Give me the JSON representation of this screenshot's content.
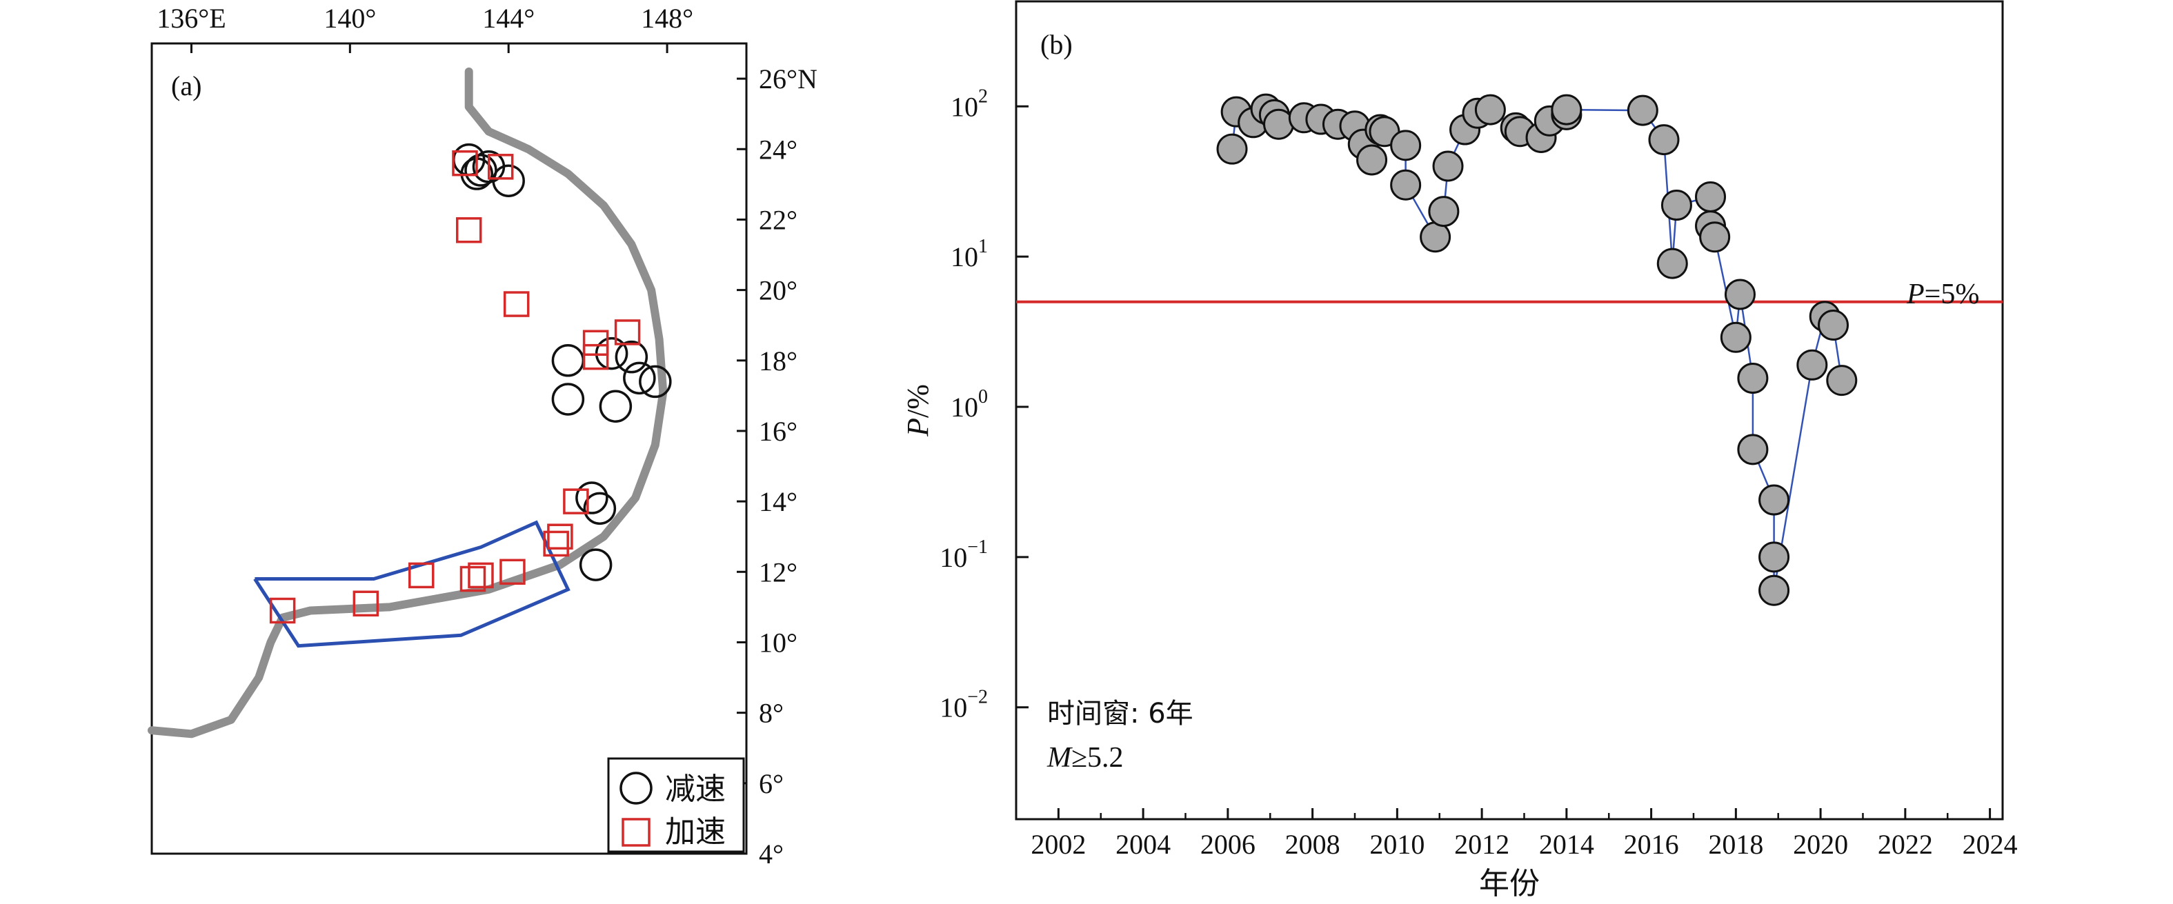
{
  "panel_a": {
    "label": "(a)",
    "x_ticks": [
      {
        "lon": 136,
        "label": "136°E"
      },
      {
        "lon": 140,
        "label": "140°"
      },
      {
        "lon": 144,
        "label": "144°"
      },
      {
        "lon": 148,
        "label": "148°"
      }
    ],
    "y_ticks": [
      {
        "lat": 26,
        "label": "26°N"
      },
      {
        "lat": 24,
        "label": "24°"
      },
      {
        "lat": 22,
        "label": "22°"
      },
      {
        "lat": 20,
        "label": "20°"
      },
      {
        "lat": 18,
        "label": "18°"
      },
      {
        "lat": 16,
        "label": "16°"
      },
      {
        "lat": 14,
        "label": "14°"
      },
      {
        "lat": 12,
        "label": "12°"
      },
      {
        "lat": 10,
        "label": "10°"
      },
      {
        "lat": 8,
        "label": "8°"
      },
      {
        "lat": 6,
        "label": "6°"
      },
      {
        "lat": 4,
        "label": "4°"
      }
    ],
    "legend": {
      "decel": "减速",
      "accel": "加速"
    },
    "colors": {
      "decel": "#111111",
      "accel": "#d42a2a",
      "trench": "#8f8f8f",
      "region": "#2b4fb0"
    }
  },
  "panel_b": {
    "label": "(b)",
    "xlabel": "年份",
    "ylabel_italic": "P",
    "ylabel_rest": "/%",
    "threshold_label_italic": "P",
    "threshold_label_rest": "=5%",
    "annotation_line1": "时间窗: 6年",
    "annotation_line2_italic": "M",
    "annotation_line2_rest": "≥5.2",
    "colors": {
      "threshold": "#d42a2a",
      "marker_fill": "#a7a7a7",
      "connector": "#3352b5"
    }
  },
  "chart_data": [
    {
      "type": "scatter",
      "panel": "a",
      "xlim": [
        135,
        150
      ],
      "ylim": [
        4,
        27
      ],
      "series": [
        {
          "name": "减速",
          "marker": "circle",
          "points": [
            {
              "lon": 143.0,
              "lat": 23.7
            },
            {
              "lon": 143.3,
              "lat": 23.4
            },
            {
              "lon": 143.5,
              "lat": 23.5
            },
            {
              "lon": 143.2,
              "lat": 23.3
            },
            {
              "lon": 144.0,
              "lat": 23.1
            },
            {
              "lon": 145.5,
              "lat": 18.0
            },
            {
              "lon": 146.6,
              "lat": 18.2
            },
            {
              "lon": 147.1,
              "lat": 18.1
            },
            {
              "lon": 147.3,
              "lat": 17.5
            },
            {
              "lon": 147.7,
              "lat": 17.4
            },
            {
              "lon": 145.5,
              "lat": 16.9
            },
            {
              "lon": 146.7,
              "lat": 16.7
            },
            {
              "lon": 146.1,
              "lat": 14.1
            },
            {
              "lon": 146.3,
              "lat": 13.8
            },
            {
              "lon": 146.2,
              "lat": 12.2
            }
          ]
        },
        {
          "name": "加速",
          "marker": "square",
          "points": [
            {
              "lon": 142.9,
              "lat": 23.6
            },
            {
              "lon": 143.8,
              "lat": 23.5
            },
            {
              "lon": 143.0,
              "lat": 21.7
            },
            {
              "lon": 144.2,
              "lat": 19.6
            },
            {
              "lon": 146.2,
              "lat": 18.5
            },
            {
              "lon": 146.2,
              "lat": 18.1
            },
            {
              "lon": 147.0,
              "lat": 18.8
            },
            {
              "lon": 145.7,
              "lat": 14.0
            },
            {
              "lon": 145.3,
              "lat": 13.0
            },
            {
              "lon": 145.2,
              "lat": 12.8
            },
            {
              "lon": 141.8,
              "lat": 11.9
            },
            {
              "lon": 143.1,
              "lat": 11.8
            },
            {
              "lon": 143.3,
              "lat": 11.9
            },
            {
              "lon": 144.1,
              "lat": 12.0
            },
            {
              "lon": 140.4,
              "lat": 11.1
            },
            {
              "lon": 138.3,
              "lat": 10.9
            }
          ]
        }
      ],
      "trench": [
        [
          143.0,
          26.2
        ],
        [
          143.0,
          25.2
        ],
        [
          143.5,
          24.5
        ],
        [
          144.5,
          24.0
        ],
        [
          145.5,
          23.3
        ],
        [
          146.4,
          22.4
        ],
        [
          147.1,
          21.3
        ],
        [
          147.6,
          20.0
        ],
        [
          147.8,
          18.6
        ],
        [
          147.9,
          17.1
        ],
        [
          147.7,
          15.6
        ],
        [
          147.2,
          14.1
        ],
        [
          146.4,
          13.0
        ],
        [
          145.3,
          12.2
        ],
        [
          143.5,
          11.5
        ],
        [
          141.0,
          11.0
        ],
        [
          139.0,
          10.9
        ],
        [
          138.3,
          10.7
        ],
        [
          138.0,
          10.0
        ],
        [
          137.7,
          9.0
        ],
        [
          137.0,
          7.8
        ],
        [
          136.0,
          7.4
        ],
        [
          135.0,
          7.5
        ]
      ],
      "region": [
        [
          137.6,
          11.8
        ],
        [
          140.6,
          11.8
        ],
        [
          143.3,
          12.7
        ],
        [
          144.7,
          13.4
        ],
        [
          145.5,
          11.5
        ],
        [
          142.8,
          10.2
        ],
        [
          138.7,
          9.9
        ],
        [
          137.6,
          11.8
        ]
      ]
    },
    {
      "type": "scatter",
      "panel": "b",
      "xlabel": "年份",
      "ylabel": "P/%",
      "yscale": "log",
      "xlim": [
        2001,
        2024.3
      ],
      "ylim": [
        0.0018,
        500
      ],
      "x_ticks": [
        2002,
        2004,
        2006,
        2008,
        2010,
        2012,
        2014,
        2016,
        2018,
        2020,
        2022,
        2024
      ],
      "y_ticks": [
        {
          "value": 0.01,
          "base": "10",
          "exp": "−2"
        },
        {
          "value": 0.1,
          "base": "10",
          "exp": "−1"
        },
        {
          "value": 1,
          "base": "10",
          "exp": "0"
        },
        {
          "value": 10,
          "base": "10",
          "exp": "1"
        },
        {
          "value": 100,
          "base": "10",
          "exp": "2"
        }
      ],
      "threshold": 5,
      "points": [
        {
          "year": 2006.1,
          "p": 52
        },
        {
          "year": 2006.2,
          "p": 92
        },
        {
          "year": 2006.6,
          "p": 78
        },
        {
          "year": 2006.9,
          "p": 96
        },
        {
          "year": 2007.1,
          "p": 88
        },
        {
          "year": 2007.2,
          "p": 76
        },
        {
          "year": 2007.8,
          "p": 84
        },
        {
          "year": 2008.2,
          "p": 82
        },
        {
          "year": 2008.6,
          "p": 76
        },
        {
          "year": 2009.0,
          "p": 74
        },
        {
          "year": 2009.2,
          "p": 56
        },
        {
          "year": 2009.4,
          "p": 44
        },
        {
          "year": 2009.6,
          "p": 70
        },
        {
          "year": 2009.7,
          "p": 68
        },
        {
          "year": 2010.2,
          "p": 55
        },
        {
          "year": 2010.2,
          "p": 30
        },
        {
          "year": 2010.9,
          "p": 13.5
        },
        {
          "year": 2011.1,
          "p": 20
        },
        {
          "year": 2011.2,
          "p": 40
        },
        {
          "year": 2011.6,
          "p": 70
        },
        {
          "year": 2011.9,
          "p": 90
        },
        {
          "year": 2012.2,
          "p": 95
        },
        {
          "year": 2012.8,
          "p": 72
        },
        {
          "year": 2012.9,
          "p": 68
        },
        {
          "year": 2013.4,
          "p": 62
        },
        {
          "year": 2013.6,
          "p": 80
        },
        {
          "year": 2014.0,
          "p": 88
        },
        {
          "year": 2014.0,
          "p": 95
        },
        {
          "year": 2015.8,
          "p": 94
        },
        {
          "year": 2016.3,
          "p": 60
        },
        {
          "year": 2016.6,
          "p": 22
        },
        {
          "year": 2016.5,
          "p": 9
        },
        {
          "year": 2017.4,
          "p": 25
        },
        {
          "year": 2017.4,
          "p": 16
        },
        {
          "year": 2017.5,
          "p": 13.5
        },
        {
          "year": 2018.1,
          "p": 5.6
        },
        {
          "year": 2018.0,
          "p": 2.9
        },
        {
          "year": 2018.4,
          "p": 1.55
        },
        {
          "year": 2018.4,
          "p": 0.52
        },
        {
          "year": 2018.9,
          "p": 0.24
        },
        {
          "year": 2018.9,
          "p": 0.1
        },
        {
          "year": 2018.9,
          "p": 0.06
        },
        {
          "year": 2019.8,
          "p": 1.9
        },
        {
          "year": 2020.1,
          "p": 4.0
        },
        {
          "year": 2020.3,
          "p": 3.5
        },
        {
          "year": 2020.5,
          "p": 1.5
        }
      ]
    }
  ]
}
